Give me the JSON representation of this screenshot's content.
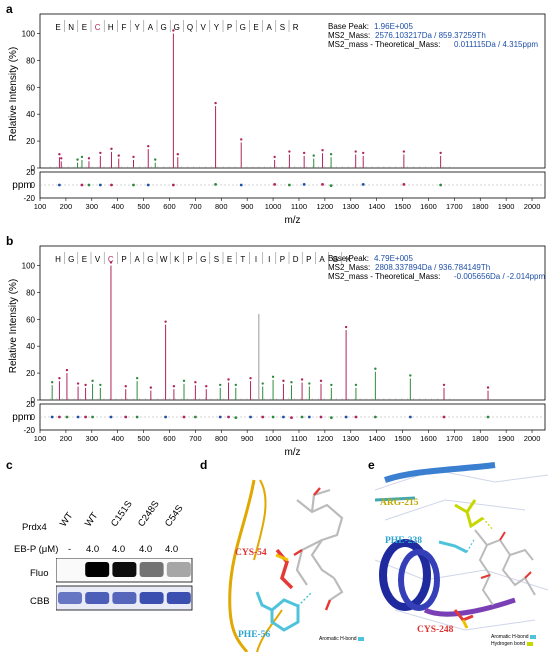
{
  "panel_labels": {
    "a": "a",
    "b": "b",
    "c": "c",
    "d": "d",
    "e": "e"
  },
  "chart_data": [
    {
      "type": "bar",
      "panel": "a",
      "peptide": [
        "E",
        "N",
        "E",
        "C",
        "H",
        "F",
        "Y",
        "A",
        "G",
        "G",
        "Q",
        "V",
        "Y",
        "P",
        "G",
        "E",
        "A",
        "S",
        "R"
      ],
      "info": {
        "base_peak_label": "Base Peak:",
        "base_peak": "1.96E+005",
        "ms2_mass_label": "MS2_Mass:",
        "ms2_mass": "2576.103217Da / 859.37259Th",
        "theo_label": "MS2_mass - Theoretical_Mass:",
        "theo": "0.011115Da / 4.315ppm"
      },
      "ylabel": "Relative Intensity (%)",
      "xlabel": "m/z",
      "ppm_label": "ppm",
      "x_ticks": [
        100,
        200,
        300,
        400,
        500,
        600,
        700,
        800,
        900,
        1000,
        1100,
        1200,
        1300,
        1400,
        1500,
        1600,
        1700,
        1800,
        1900,
        2000
      ],
      "y_ticks": [
        0,
        20,
        40,
        60,
        80,
        100
      ],
      "ppm_ticks": [
        20,
        0,
        -20
      ],
      "xlim": [
        100,
        2050
      ],
      "ylim": [
        0,
        110
      ],
      "ppm_lim": [
        -20,
        20
      ],
      "peaks": [
        {
          "mz": 175,
          "y": 8,
          "c": "#b0245c"
        },
        {
          "mz": 182,
          "y": 5,
          "c": "#b0245c"
        },
        {
          "mz": 245,
          "y": 4,
          "c": "#2f8a3e"
        },
        {
          "mz": 262,
          "y": 6,
          "c": "#2f8a3e"
        },
        {
          "mz": 289,
          "y": 5,
          "c": "#b0245c"
        },
        {
          "mz": 333,
          "y": 9,
          "c": "#b0245c"
        },
        {
          "mz": 376,
          "y": 12,
          "c": "#b0245c"
        },
        {
          "mz": 404,
          "y": 7,
          "c": "#b0245c"
        },
        {
          "mz": 461,
          "y": 6,
          "c": "#b0245c"
        },
        {
          "mz": 518,
          "y": 14,
          "c": "#b0245c"
        },
        {
          "mz": 545,
          "y": 4,
          "c": "#2f8a3e"
        },
        {
          "mz": 615,
          "y": 100,
          "c": "#b0245c"
        },
        {
          "mz": 632,
          "y": 8,
          "c": "#b0245c"
        },
        {
          "mz": 778,
          "y": 46,
          "c": "#b0245c"
        },
        {
          "mz": 877,
          "y": 19,
          "c": "#b0245c"
        },
        {
          "mz": 1006,
          "y": 6,
          "c": "#b0245c"
        },
        {
          "mz": 1063,
          "y": 10,
          "c": "#b0245c"
        },
        {
          "mz": 1120,
          "y": 9,
          "c": "#b0245c"
        },
        {
          "mz": 1157,
          "y": 7,
          "c": "#2f8a3e"
        },
        {
          "mz": 1191,
          "y": 11,
          "c": "#b0245c"
        },
        {
          "mz": 1224,
          "y": 8,
          "c": "#2f8a3e"
        },
        {
          "mz": 1319,
          "y": 10,
          "c": "#b0245c"
        },
        {
          "mz": 1348,
          "y": 9,
          "c": "#b0245c"
        },
        {
          "mz": 1505,
          "y": 10,
          "c": "#b0245c"
        },
        {
          "mz": 1647,
          "y": 9,
          "c": "#b0245c"
        }
      ],
      "ppm_points": [
        {
          "mz": 175,
          "p": 0
        },
        {
          "mz": 262,
          "p": 0
        },
        {
          "mz": 289,
          "p": 0
        },
        {
          "mz": 333,
          "p": 0
        },
        {
          "mz": 376,
          "p": 0
        },
        {
          "mz": 461,
          "p": 0
        },
        {
          "mz": 518,
          "p": 0
        },
        {
          "mz": 615,
          "p": 0
        },
        {
          "mz": 778,
          "p": 1
        },
        {
          "mz": 877,
          "p": 0
        },
        {
          "mz": 1006,
          "p": 1
        },
        {
          "mz": 1063,
          "p": 0
        },
        {
          "mz": 1120,
          "p": 1
        },
        {
          "mz": 1191,
          "p": 1
        },
        {
          "mz": 1224,
          "p": -1
        },
        {
          "mz": 1348,
          "p": 1
        },
        {
          "mz": 1505,
          "p": 1
        },
        {
          "mz": 1647,
          "p": 0
        }
      ]
    },
    {
      "type": "bar",
      "panel": "b",
      "peptide": [
        "H",
        "G",
        "E",
        "V",
        "C",
        "P",
        "A",
        "G",
        "W",
        "K",
        "P",
        "G",
        "S",
        "E",
        "T",
        "I",
        "I",
        "P",
        "D",
        "P",
        "A",
        "G",
        "K"
      ],
      "info": {
        "base_peak_label": "Base Peak:",
        "base_peak": "4.79E+005",
        "ms2_mass_label": "MS2_Mass:",
        "ms2_mass": "2808.337894Da / 936.784149Th",
        "theo_label": "MS2_mass - Theoretical_Mass:",
        "theo": "-0.005656Da / -2.014ppm"
      },
      "ylabel": "Relative Intensity (%)",
      "xlabel": "m/z",
      "ppm_label": "ppm",
      "x_ticks": [
        100,
        200,
        300,
        400,
        500,
        600,
        700,
        800,
        900,
        1000,
        1100,
        1200,
        1300,
        1400,
        1500,
        1600,
        1700,
        1800,
        1900,
        2000
      ],
      "y_ticks": [
        0,
        20,
        40,
        60,
        80,
        100
      ],
      "ppm_ticks": [
        20,
        0,
        -20
      ],
      "xlim": [
        100,
        2050
      ],
      "ylim": [
        0,
        110
      ],
      "ppm_lim": [
        -20,
        20
      ],
      "peaks": [
        {
          "mz": 147,
          "y": 11,
          "c": "#2f8a3e"
        },
        {
          "mz": 175,
          "y": 14,
          "c": "#b0245c"
        },
        {
          "mz": 204,
          "y": 20,
          "c": "#b0245c"
        },
        {
          "mz": 247,
          "y": 10,
          "c": "#b0245c"
        },
        {
          "mz": 276,
          "y": 9,
          "c": "#b0245c"
        },
        {
          "mz": 303,
          "y": 12,
          "c": "#2f8a3e"
        },
        {
          "mz": 333,
          "y": 9,
          "c": "#2f8a3e"
        },
        {
          "mz": 374,
          "y": 100,
          "c": "#b0245c"
        },
        {
          "mz": 431,
          "y": 8,
          "c": "#b0245c"
        },
        {
          "mz": 475,
          "y": 14,
          "c": "#2f8a3e"
        },
        {
          "mz": 528,
          "y": 7,
          "c": "#b0245c"
        },
        {
          "mz": 585,
          "y": 56,
          "c": "#b0245c"
        },
        {
          "mz": 617,
          "y": 8,
          "c": "#b0245c"
        },
        {
          "mz": 656,
          "y": 12,
          "c": "#2f8a3e"
        },
        {
          "mz": 700,
          "y": 11,
          "c": "#b0245c"
        },
        {
          "mz": 742,
          "y": 8,
          "c": "#b0245c"
        },
        {
          "mz": 796,
          "y": 9,
          "c": "#2f8a3e"
        },
        {
          "mz": 828,
          "y": 13,
          "c": "#b0245c"
        },
        {
          "mz": 856,
          "y": 9,
          "c": "#2f8a3e"
        },
        {
          "mz": 913,
          "y": 14,
          "c": "#b0245c"
        },
        {
          "mz": 945,
          "y": 64,
          "c": "#999999"
        },
        {
          "mz": 960,
          "y": 10,
          "c": "#2f8a3e"
        },
        {
          "mz": 1000,
          "y": 15,
          "c": "#2f8a3e"
        },
        {
          "mz": 1040,
          "y": 12,
          "c": "#b0245c"
        },
        {
          "mz": 1071,
          "y": 11,
          "c": "#2f8a3e"
        },
        {
          "mz": 1112,
          "y": 13,
          "c": "#b0245c"
        },
        {
          "mz": 1140,
          "y": 10,
          "c": "#2f8a3e"
        },
        {
          "mz": 1185,
          "y": 12,
          "c": "#b0245c"
        },
        {
          "mz": 1225,
          "y": 9,
          "c": "#2f8a3e"
        },
        {
          "mz": 1282,
          "y": 52,
          "c": "#b0245c"
        },
        {
          "mz": 1320,
          "y": 9,
          "c": "#2f8a3e"
        },
        {
          "mz": 1395,
          "y": 21,
          "c": "#2f8a3e"
        },
        {
          "mz": 1530,
          "y": 16,
          "c": "#2f8a3e"
        },
        {
          "mz": 1660,
          "y": 9,
          "c": "#b0245c"
        },
        {
          "mz": 1830,
          "y": 7,
          "c": "#b0245c"
        }
      ],
      "ppm_points": [
        {
          "mz": 147,
          "p": 0
        },
        {
          "mz": 175,
          "p": 0
        },
        {
          "mz": 204,
          "p": 0
        },
        {
          "mz": 247,
          "p": 0
        },
        {
          "mz": 276,
          "p": 0
        },
        {
          "mz": 303,
          "p": 0
        },
        {
          "mz": 374,
          "p": 0
        },
        {
          "mz": 431,
          "p": 0
        },
        {
          "mz": 475,
          "p": 0
        },
        {
          "mz": 585,
          "p": 0
        },
        {
          "mz": 656,
          "p": 0
        },
        {
          "mz": 700,
          "p": 0
        },
        {
          "mz": 796,
          "p": 0
        },
        {
          "mz": 828,
          "p": 0
        },
        {
          "mz": 856,
          "p": -1
        },
        {
          "mz": 913,
          "p": 0
        },
        {
          "mz": 960,
          "p": 0
        },
        {
          "mz": 1000,
          "p": 0
        },
        {
          "mz": 1040,
          "p": 0
        },
        {
          "mz": 1071,
          "p": -1
        },
        {
          "mz": 1112,
          "p": 0
        },
        {
          "mz": 1140,
          "p": 0
        },
        {
          "mz": 1185,
          "p": 0
        },
        {
          "mz": 1225,
          "p": -1
        },
        {
          "mz": 1282,
          "p": 0
        },
        {
          "mz": 1320,
          "p": 0
        },
        {
          "mz": 1395,
          "p": 0
        },
        {
          "mz": 1530,
          "p": 0
        },
        {
          "mz": 1660,
          "p": 0
        },
        {
          "mz": 1830,
          "p": 0
        }
      ]
    }
  ],
  "western": {
    "prdx4_label": "Prdx4",
    "ebp_label": "EB-P (μM)",
    "lanes": [
      {
        "mutant": "WT",
        "conc": "-",
        "fluo": 0,
        "cbb": 0.75
      },
      {
        "mutant": "WT",
        "conc": "4.0",
        "fluo": 1.0,
        "cbb": 0.9
      },
      {
        "mutant": "C151S",
        "conc": "4.0",
        "fluo": 0.95,
        "cbb": 0.85
      },
      {
        "mutant": "C248S",
        "conc": "4.0",
        "fluo": 0.55,
        "cbb": 1.0
      },
      {
        "mutant": "C54S",
        "conc": "4.0",
        "fluo": 0.35,
        "cbb": 1.0
      }
    ],
    "fluo_label": "Fluo",
    "cbb_label": "CBB"
  },
  "structure_d": {
    "res1": "CYS-54",
    "res2": "PHE-56",
    "legend": "Aromatic H-bond"
  },
  "structure_e": {
    "res1": "ARG-215",
    "res2": "PHE-238",
    "res3": "CYS-248",
    "legend1": "Aromatic H-bond",
    "legend2": "Hydrogen bond"
  },
  "colors": {
    "b_ion": "#b0245c",
    "y_ion": "#2f8a3e",
    "info_value": "#1f4fa8",
    "cbb_band": "#3b4fb0"
  }
}
